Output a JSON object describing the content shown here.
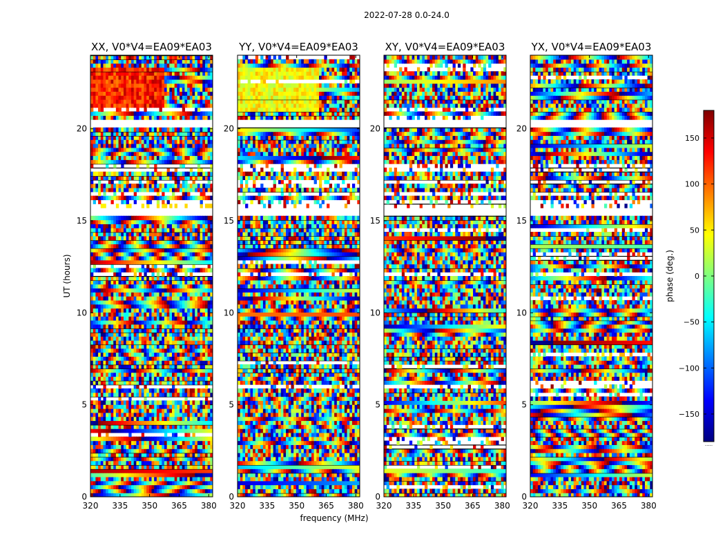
{
  "figure": {
    "suptitle": "2022-07-28 0.0-24.0",
    "ylabel": "UT (hours)",
    "xlabel": "frequency (MHz)"
  },
  "chart_data": {
    "type": "heatmap",
    "description": "Visibility phase waterfall (time vs frequency) per polarization",
    "x": {
      "label": "frequency (MHz)",
      "range": [
        320,
        382
      ],
      "ticks": [
        320,
        335,
        350,
        365,
        380
      ]
    },
    "y": {
      "label": "UT (hours)",
      "range": [
        0,
        24
      ],
      "ticks": [
        0,
        5,
        10,
        15,
        20
      ]
    },
    "colorbar": {
      "label": "phase (deg.)",
      "range": [
        -180,
        180
      ],
      "ticks": [
        150,
        100,
        50,
        0,
        -50,
        -100,
        -150
      ],
      "tick_labels": [
        "150",
        "100",
        "50",
        "0",
        "−50",
        "−100",
        "−150"
      ],
      "colormap": [
        "#00007f",
        "#0000ff",
        "#007fff",
        "#00ffff",
        "#7fff7f",
        "#ffff00",
        "#ff7f00",
        "#ff0000",
        "#7f0000"
      ],
      "footnote": "·····"
    },
    "panels": [
      {
        "title": "XX, V0*V4=EA09*EA03",
        "pol": "XX"
      },
      {
        "title": "YY, V0*V4=EA09*EA03",
        "pol": "YY"
      },
      {
        "title": "XY, V0*V4=EA09*EA03",
        "pol": "XY"
      },
      {
        "title": "YX, V0*V4=EA09*EA03",
        "pol": "YX"
      }
    ],
    "flagged_ut_hours": [
      [
        17.0,
        17.3
      ],
      [
        17.75,
        18.0
      ],
      [
        15.8,
        16.2
      ],
      [
        16.3,
        16.6
      ],
      [
        11.9,
        12.15
      ],
      [
        10.8,
        10.95
      ],
      [
        5.85,
        6.0
      ],
      [
        3.4,
        3.55
      ],
      [
        1.25,
        1.4
      ]
    ],
    "blank_ut_hours": [
      [
        20.05,
        20.6
      ],
      [
        15.2,
        15.6
      ]
    ]
  }
}
